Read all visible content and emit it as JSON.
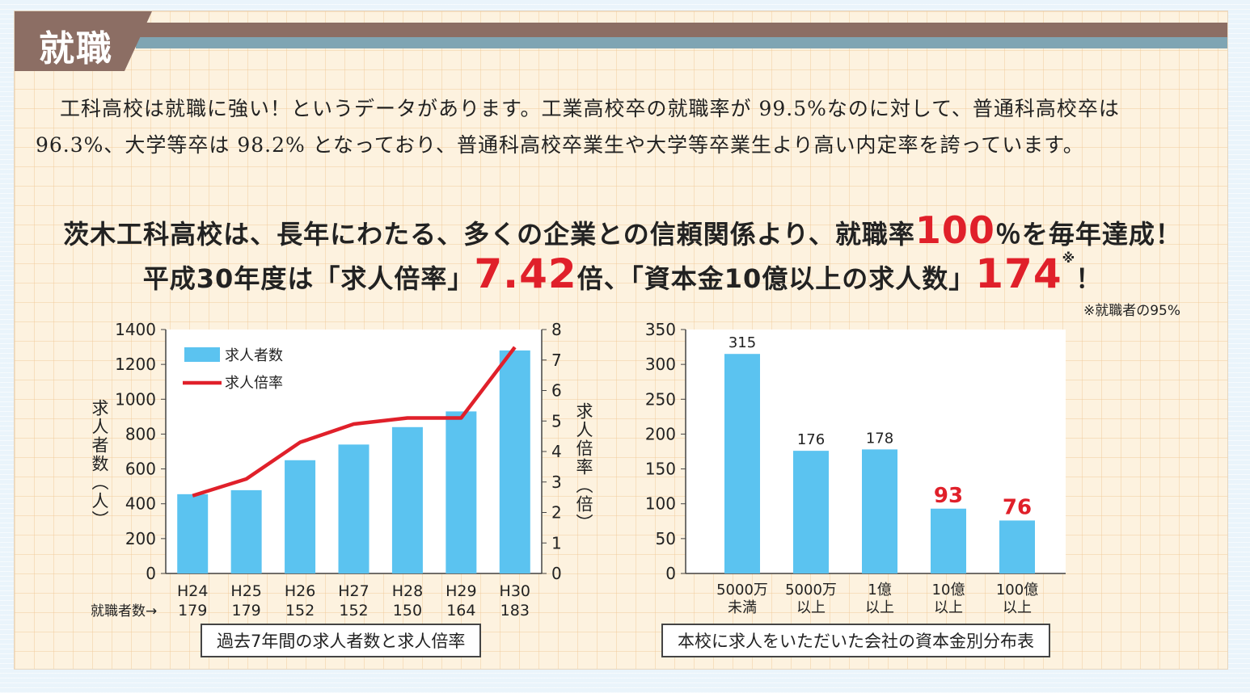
{
  "header": {
    "title": "就職"
  },
  "intro": "工科高校は就職に強い！というデータがあります。工業高校卒の就職率が 99.5%なのに対して、普通科高校卒は 96.3%、大学等卒は 98.2% となっており、普通科高校卒業生や大学等卒業生より高い内定率を誇っています。",
  "headline1": {
    "pre": "茨木工科高校は、長年にわたる、多くの企業との信頼関係より、就職率",
    "value": "100",
    "post": "％を毎年達成！"
  },
  "headline2": {
    "pre": "平成30年度は「求人倍率」",
    "value1": "7.42",
    "mid": "倍、「資本金10億以上の求人数」",
    "value2": "174",
    "mark": "※",
    "post": "！"
  },
  "note": "※就職者の95%",
  "colors": {
    "bar": "#5bc3f0",
    "line": "#e0202a",
    "highlight": "#e0202a"
  },
  "chart_data": [
    {
      "type": "bar",
      "caption": "過去7年間の求人者数と求人倍率",
      "categories": [
        "H24",
        "H25",
        "H26",
        "H27",
        "H28",
        "H29",
        "H30"
      ],
      "category_sub": [
        "179",
        "179",
        "152",
        "152",
        "150",
        "164",
        "183"
      ],
      "category_sub_label": "就職者数→",
      "series": [
        {
          "name": "求人者数",
          "kind": "bar",
          "axis": "left",
          "values": [
            455,
            478,
            650,
            740,
            840,
            930,
            1280
          ]
        },
        {
          "name": "求人倍率",
          "kind": "line",
          "axis": "right",
          "values": [
            2.55,
            3.1,
            4.3,
            4.9,
            5.1,
            5.1,
            7.42
          ]
        }
      ],
      "ylabel": "求人者数（人）",
      "y2label": "求人倍率（倍）",
      "ylim": [
        0,
        1400
      ],
      "yticks": [
        0,
        200,
        400,
        600,
        800,
        1000,
        1200,
        1400
      ],
      "y2lim": [
        0,
        8
      ],
      "y2ticks": [
        0,
        1,
        2,
        3,
        4,
        5,
        6,
        7,
        8
      ],
      "legend": "top-left"
    },
    {
      "type": "bar",
      "caption": "本校に求人をいただいた会社の資本金別分布表",
      "categories": [
        [
          "5000万",
          "未満"
        ],
        [
          "5000万",
          "以上"
        ],
        [
          "1億",
          "以上"
        ],
        [
          "10億",
          "以上"
        ],
        [
          "100億",
          "以上"
        ]
      ],
      "values": [
        315,
        176,
        178,
        93,
        76
      ],
      "highlight": [
        false,
        false,
        false,
        true,
        true
      ],
      "ylim": [
        0,
        350
      ],
      "yticks": [
        0,
        50,
        100,
        150,
        200,
        250,
        300,
        350
      ]
    }
  ]
}
